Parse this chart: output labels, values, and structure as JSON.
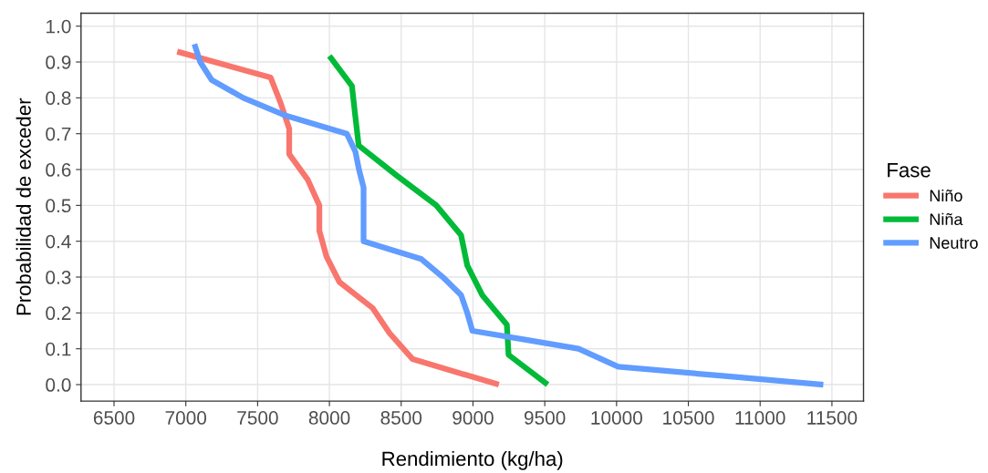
{
  "chart_data": {
    "type": "line",
    "xlabel": "Rendimiento (kg/ha)",
    "ylabel": "Probabilidad de exceder",
    "legend_title": "Fase",
    "legend": "right",
    "grid": true,
    "xlim": [
      6270,
      11720
    ],
    "xticks": [
      6500,
      7000,
      7500,
      8000,
      8500,
      9000,
      9500,
      10000,
      10500,
      11000,
      11500
    ],
    "ylim": [
      -0.046,
      1.036
    ],
    "yticks": [
      {
        "value": 0,
        "label": "0.0"
      },
      0.1,
      0.2,
      0.3,
      0.4,
      0.5,
      0.6,
      0.7,
      0.8,
      0.9,
      {
        "value": 1,
        "label": "1.0"
      }
    ],
    "series": [
      {
        "name": "Niño",
        "color": "#f8766d",
        "x": [
          6940,
          7590,
          7660,
          7720,
          7720,
          7850,
          7930,
          7930,
          7980,
          8070,
          8300,
          8420,
          8580,
          9180
        ],
        "values": [
          0.929,
          0.857,
          0.786,
          0.714,
          0.643,
          0.571,
          0.5,
          0.429,
          0.357,
          0.286,
          0.214,
          0.143,
          0.071,
          0.0
        ]
      },
      {
        "name": "Niña",
        "color": "#00ba38",
        "x": [
          8000,
          8157,
          8180,
          8204,
          8470,
          8744,
          8917,
          8960,
          9064,
          9236,
          9248,
          9520
        ],
        "values": [
          0.917,
          0.833,
          0.75,
          0.667,
          0.583,
          0.5,
          0.417,
          0.333,
          0.25,
          0.167,
          0.083,
          0.0
        ]
      },
      {
        "name": "Neutro",
        "color": "#619cff",
        "x": [
          7060,
          7100,
          7180,
          7400,
          7700,
          8121,
          8181,
          8206,
          8238,
          8238,
          8238,
          8238,
          8641,
          8790,
          8917,
          8960,
          8996,
          9370,
          9735,
          10011,
          10720,
          11440
        ],
        "values": [
          0.95,
          0.9,
          0.85,
          0.8,
          0.75,
          0.7,
          0.65,
          0.6,
          0.55,
          0.5,
          0.45,
          0.4,
          0.35,
          0.3,
          0.25,
          0.2,
          0.15,
          0.125,
          0.1,
          0.05,
          0.025,
          0.0
        ]
      }
    ]
  }
}
